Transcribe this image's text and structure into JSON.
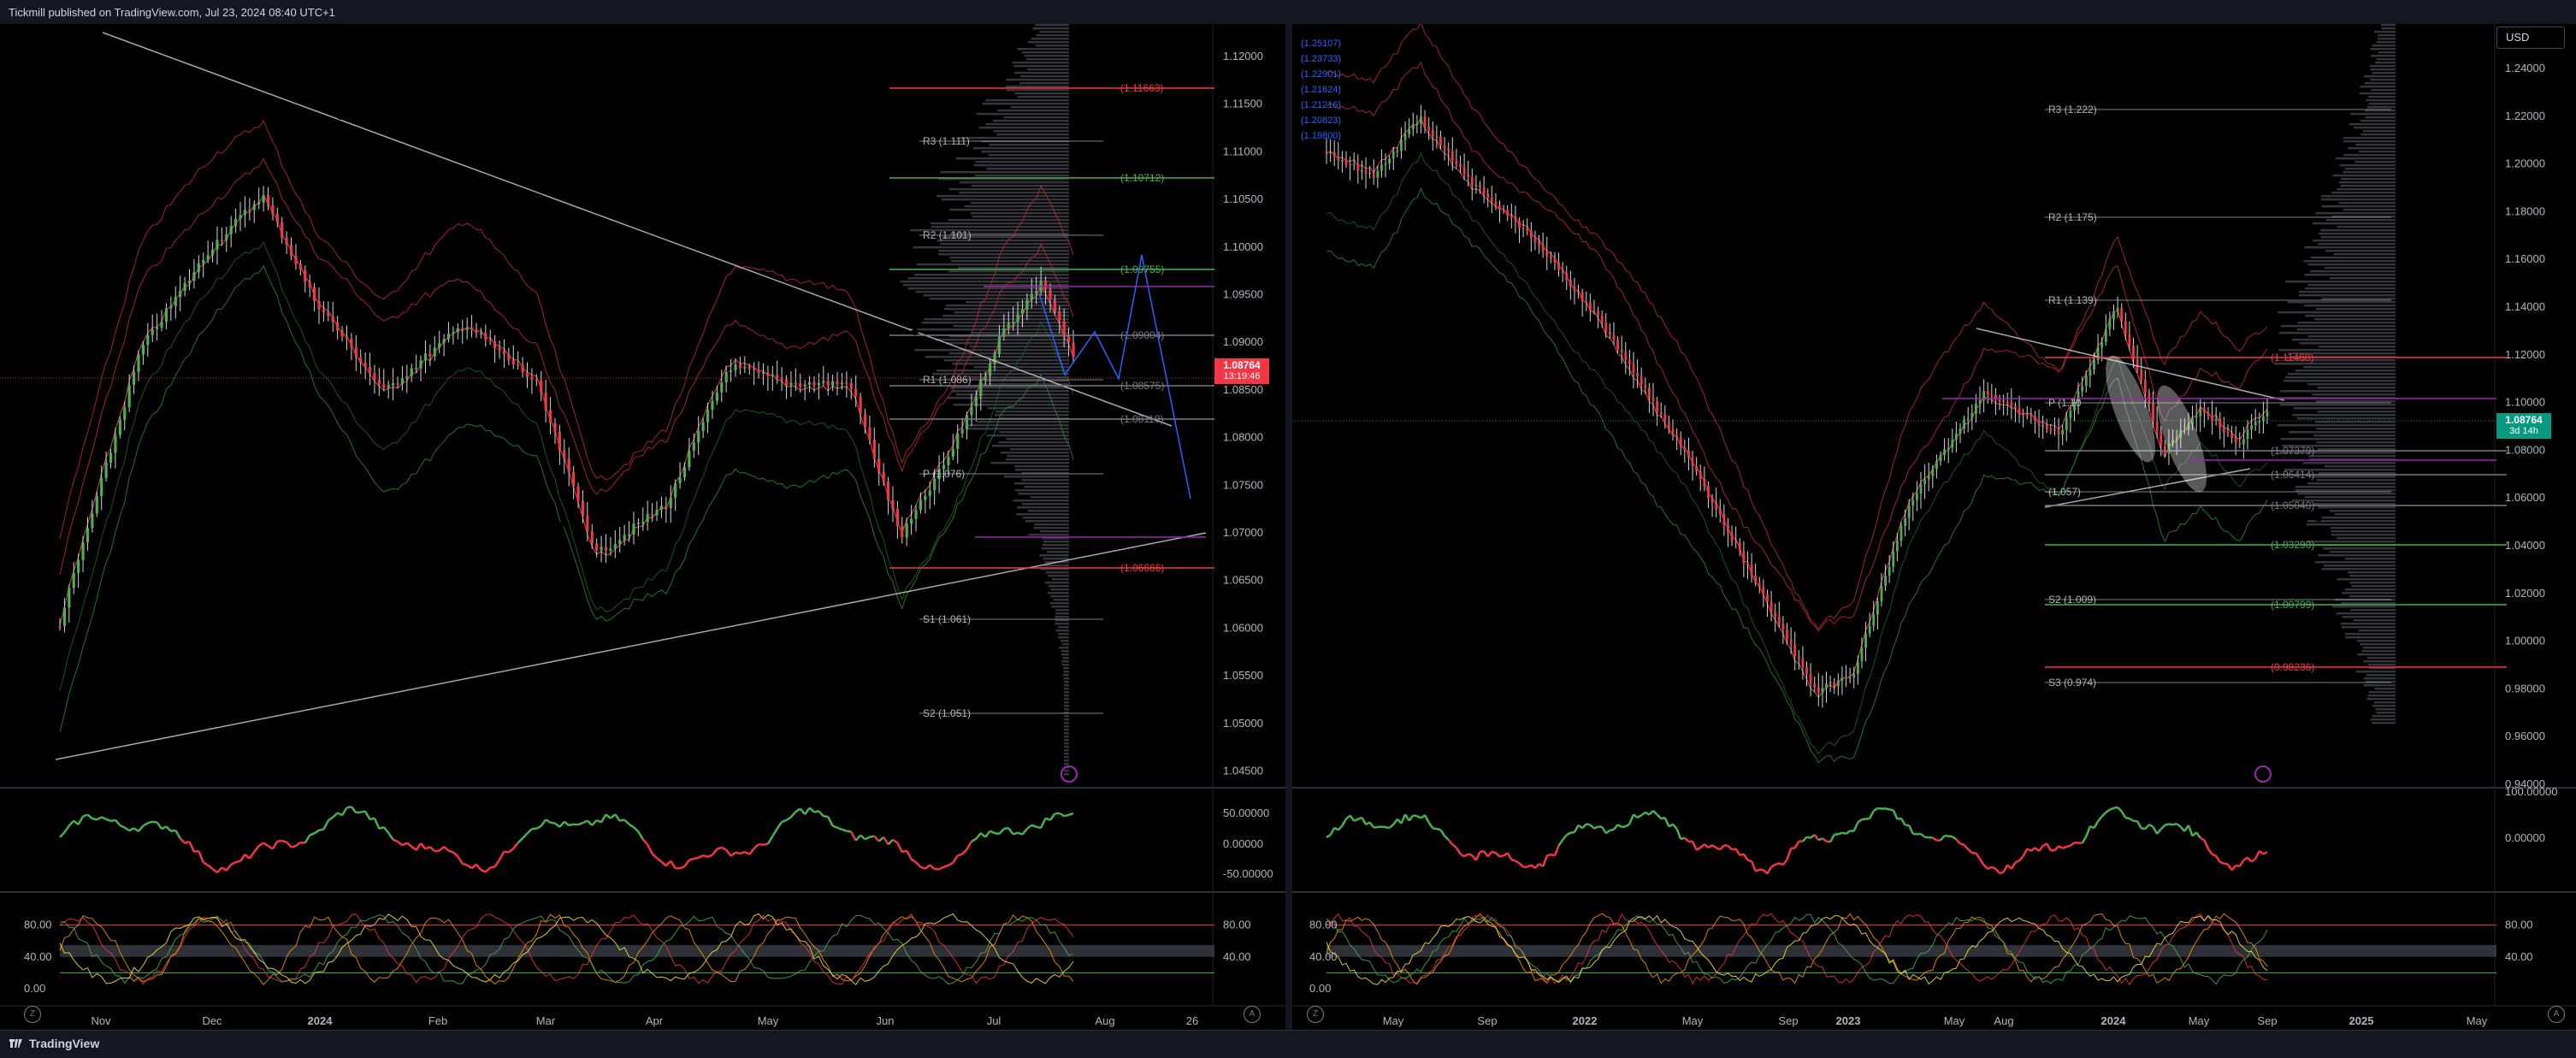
{
  "header": {
    "published": "Tickmill published on TradingView.com, Jul 23, 2024 08:40 UTC+1"
  },
  "footer": {
    "brand": "TradingView"
  },
  "colors": {
    "bull": "#26a69a",
    "bear": "#ef5350",
    "bg": "#000000",
    "bar": "#131722",
    "green_candle": "#4caf50",
    "red_candle": "#f23645",
    "blue_path": "#2962ff"
  },
  "left_chart": {
    "price_axis": [
      "1.12000",
      "1.11500",
      "1.11000",
      "1.10500",
      "1.10000",
      "1.09500",
      "1.09000",
      "1.08500",
      "1.08000",
      "1.07500",
      "1.07000",
      "1.06500",
      "1.06000",
      "1.05500",
      "1.05000",
      "1.04500"
    ],
    "time_axis": [
      "Nov",
      "Dec",
      "2024",
      "Feb",
      "Mar",
      "Apr",
      "May",
      "Jun",
      "Jul",
      "Aug",
      "26"
    ],
    "last_price": "1.08764",
    "countdown": "13:19:46",
    "pivots": [
      {
        "label": "R3 (1.111)"
      },
      {
        "label": "R2 (1.101)"
      },
      {
        "label": "R1 (1.086)"
      },
      {
        "label": "P (1.076)"
      },
      {
        "label": "S1 (1.061)"
      },
      {
        "label": "S2 (1.051)"
      }
    ],
    "levels": [
      {
        "label": "(1.11663)",
        "color": "#f23645"
      },
      {
        "label": "(1.10712)",
        "color": "#4caf50"
      },
      {
        "label": "(1.09755)",
        "color": "#4caf50"
      },
      {
        "label": "(1.09004)",
        "color": "#787b86"
      },
      {
        "label": "(1.08575)",
        "color": "#787b86"
      },
      {
        "label": "(1.08110)",
        "color": "#787b86"
      },
      {
        "label": "(1.06666)",
        "color": "#f23645"
      }
    ],
    "macd_axis": [
      "50.00000",
      "0.00000",
      "-50.00000"
    ],
    "stoch_axis_left": [
      "80.00",
      "40.00",
      "0.00"
    ],
    "stoch_axis_right": [
      "80.00",
      "40.00"
    ]
  },
  "right_chart": {
    "currency_button": "USD",
    "price_axis": [
      "1.24000",
      "1.22000",
      "1.20000",
      "1.18000",
      "1.16000",
      "1.14000",
      "1.12000",
      "1.10000",
      "1.08000",
      "1.06000",
      "1.04000",
      "1.02000",
      "1.00000",
      "0.98000",
      "0.96000",
      "0.94000"
    ],
    "time_axis": [
      "May",
      "Sep",
      "2022",
      "May",
      "Sep",
      "2023",
      "May",
      "Aug",
      "2024",
      "May",
      "Sep",
      "2025",
      "May"
    ],
    "last_price": "1.08764",
    "countdown": "3d 14h",
    "pivots": [
      {
        "label": "R3 (1.222)"
      },
      {
        "label": "R2 (1.175)"
      },
      {
        "label": "R1 (1.139)"
      },
      {
        "label": "P (1.10"
      },
      {
        "label": "(1.057)"
      },
      {
        "label": "S2 (1.009)"
      },
      {
        "label": "S3 (0.974)"
      }
    ],
    "levels": [
      {
        "label": "(1.11468)",
        "color": "#f23645"
      },
      {
        "label": "(1.07379)",
        "color": "#787b86"
      },
      {
        "label": "(1.06414)",
        "color": "#787b86"
      },
      {
        "label": "(1.05040)",
        "color": "#787b86"
      },
      {
        "label": "(1.03290)",
        "color": "#4caf50"
      },
      {
        "label": "(1.00799)",
        "color": "#4caf50"
      },
      {
        "label": "(0.98236)",
        "color": "#f23645"
      }
    ],
    "top_left_labels": [
      "(1.25107)",
      "(1.23733)",
      "(1.22901)",
      "(1.21624)",
      "(1.21216)",
      "(1.20823)",
      "(1.19800)"
    ],
    "macd_axis": [
      "100.00000",
      "0.00000"
    ],
    "stoch_axis_left": [
      "80.00",
      "40.00",
      "0.00"
    ],
    "stoch_axis_right": [
      "80.00",
      "40.00"
    ]
  }
}
